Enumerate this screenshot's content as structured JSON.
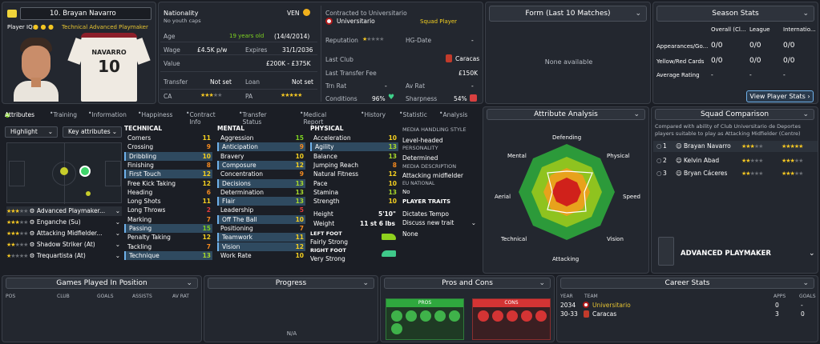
{
  "player": {
    "number_name": "10. Brayan Navarro",
    "player_iq_label": "Player IQ:",
    "role_short": "Technical Advanced Playmaker",
    "shirt_name": "NAVARRO",
    "shirt_number": "10"
  },
  "info": {
    "nationality_label": "Nationality",
    "nationality_code": "VEN",
    "caps": "No youth caps",
    "age_label": "Age",
    "age_value": "19 years old",
    "dob": "(14/4/2014)",
    "wage_label": "Wage",
    "wage_value": "£4.5K p/w",
    "expires_label": "Expires",
    "expires_value": "31/1/2036",
    "value_label": "Value",
    "value_value": "£200K - £375K",
    "transfer_label": "Transfer",
    "transfer_value": "Not set",
    "loan_label": "Loan",
    "loan_value": "Not set",
    "ca_label": "CA",
    "pa_label": "PA"
  },
  "contract": {
    "contracted_to": "Contracted to Universitario",
    "club": "Universitario",
    "status": "Squad Player",
    "reputation_label": "Reputation",
    "hg_label": "HG-Date",
    "hg_value": "-",
    "last_club_label": "Last Club",
    "last_club_value": "Caracas",
    "last_fee_label": "Last Transfer Fee",
    "last_fee_value": "£150K",
    "trn_rat_label": "Trn Rat",
    "trn_rat_value": "-",
    "av_rat_label": "Av Rat",
    "av_rat_value": "-",
    "conditions_label": "Conditions",
    "conditions_value": "96%",
    "sharpness_label": "Sharpness",
    "sharpness_value": "54%"
  },
  "form": {
    "title": "Form (Last 10 Matches)",
    "empty": "None available"
  },
  "season": {
    "title": "Season Stats",
    "cols": [
      "Overall (Cl...",
      "League",
      "Internatio..."
    ],
    "rows": [
      {
        "label": "Appearances/Go...",
        "a": "0/0",
        "b": "0/0",
        "c": "0/0"
      },
      {
        "label": "Yellow/Red Cards",
        "a": "0/0",
        "b": "0/0",
        "c": "0/0"
      },
      {
        "label": "Average Rating",
        "a": "-",
        "b": "-",
        "c": "-"
      }
    ],
    "button": "View Player Stats"
  },
  "tabs": [
    "Attributes",
    "Training",
    "Information",
    "Happiness",
    "Contract Info",
    "Transfer Status",
    "Medical Report",
    "History",
    "Statistic",
    "Analysis"
  ],
  "attributes": {
    "highlight": "Highlight",
    "key_attributes": "Key attributes",
    "technical_title": "TECHNICAL",
    "technical": [
      {
        "n": "Corners",
        "v": "11"
      },
      {
        "n": "Crossing",
        "v": "9"
      },
      {
        "n": "Dribbling",
        "v": "10"
      },
      {
        "n": "Finishing",
        "v": "8"
      },
      {
        "n": "First Touch",
        "v": "12"
      },
      {
        "n": "Free Kick Taking",
        "v": "12"
      },
      {
        "n": "Heading",
        "v": "6"
      },
      {
        "n": "Long Shots",
        "v": "11"
      },
      {
        "n": "Long Throws",
        "v": "2"
      },
      {
        "n": "Marking",
        "v": "7"
      },
      {
        "n": "Passing",
        "v": "15"
      },
      {
        "n": "Penalty Taking",
        "v": "12"
      },
      {
        "n": "Tackling",
        "v": "7"
      },
      {
        "n": "Technique",
        "v": "13"
      }
    ],
    "mental_title": "MENTAL",
    "mental": [
      {
        "n": "Aggression",
        "v": "15"
      },
      {
        "n": "Anticipation",
        "v": "9"
      },
      {
        "n": "Bravery",
        "v": "10"
      },
      {
        "n": "Composure",
        "v": "12"
      },
      {
        "n": "Concentration",
        "v": "9"
      },
      {
        "n": "Decisions",
        "v": "13"
      },
      {
        "n": "Determination",
        "v": "13"
      },
      {
        "n": "Flair",
        "v": "13"
      },
      {
        "n": "Leadership",
        "v": "5"
      },
      {
        "n": "Off The Ball",
        "v": "10"
      },
      {
        "n": "Positioning",
        "v": "7"
      },
      {
        "n": "Teamwork",
        "v": "11"
      },
      {
        "n": "Vision",
        "v": "12"
      },
      {
        "n": "Work Rate",
        "v": "10"
      }
    ],
    "physical_title": "PHYSICAL",
    "physical": [
      {
        "n": "Acceleration",
        "v": "10"
      },
      {
        "n": "Agility",
        "v": "13"
      },
      {
        "n": "Balance",
        "v": "13"
      },
      {
        "n": "Jumping Reach",
        "v": "8"
      },
      {
        "n": "Natural Fitness",
        "v": "12"
      },
      {
        "n": "Pace",
        "v": "10"
      },
      {
        "n": "Stamina",
        "v": "13"
      },
      {
        "n": "Strength",
        "v": "10"
      }
    ],
    "height_label": "Height",
    "height_value": "5'10\"",
    "weight_label": "Weight",
    "weight_value": "11 st 6 lbs",
    "left_foot_label": "LEFT FOOT",
    "left_foot_value": "Fairly Strong",
    "right_foot_label": "RIGHT FOOT",
    "right_foot_value": "Very Strong",
    "media_style_label": "MEDIA HANDLING STYLE",
    "media_style_value": "Level-headed",
    "personality_label": "PERSONALITY",
    "personality_value": "Determined",
    "media_desc_label": "MEDIA DESCRIPTION",
    "media_desc_value": "Attacking midfielder",
    "eu_label": "EU NATIONAL",
    "eu_value": "No",
    "traits_label": "PLAYER TRAITS",
    "trait1": "Dictates Tempo",
    "trait2": "Discuss new trait",
    "trait3": "None"
  },
  "roles": [
    {
      "name": "Advanced Playmaker...",
      "stars": "★★★",
      "gray": "★★"
    },
    {
      "name": "Enganche (Su)",
      "stars": "★★★",
      "gray": "★★"
    },
    {
      "name": "Attacking Midfielder...",
      "stars": "★★★",
      "gray": "★★"
    },
    {
      "name": "Shadow Striker (At)",
      "stars": "★★",
      "gray": "★★★"
    },
    {
      "name": "Trequartista (At)",
      "stars": "★",
      "gray": "★★★★"
    }
  ],
  "analysis": {
    "title": "Attribute Analysis",
    "axes": [
      "Defending",
      "Physical",
      "Speed",
      "Vision",
      "Attacking",
      "Technical",
      "Aerial",
      "Mental"
    ]
  },
  "squad": {
    "title": "Squad Comparison",
    "desc": "Compared with ability of Club Universitario de Deportes players suitable to play as Attacking Midfielder (Centre)",
    "rows": [
      {
        "rank": "1",
        "name": "Brayan Navarro",
        "ca": "★★★",
        "cag": "★★",
        "pa": "★★★★★",
        "pag": ""
      },
      {
        "rank": "2",
        "name": "Kelvin Abad",
        "ca": "★★",
        "cag": "★★★",
        "pa": "★★★",
        "pag": "★★"
      },
      {
        "rank": "3",
        "name": "Bryan Cáceres",
        "ca": "★★",
        "cag": "★★★",
        "pa": "★★★",
        "pag": "★★"
      }
    ],
    "role": "ADVANCED PLAYMAKER"
  },
  "bottom": {
    "games_title": "Games Played In Position",
    "games_cols": [
      "POS",
      "CLUB",
      "GOALS",
      "ASSISTS",
      "AV RAT"
    ],
    "progress_title": "Progress",
    "progress_empty": "N/A",
    "pros_title": "Pros and Cons",
    "pros_label": "PROS",
    "cons_label": "CONS",
    "career_title": "Career Stats",
    "career_cols": [
      "YEAR",
      "TEAM",
      "APPS",
      "GOALS"
    ],
    "career_rows": [
      {
        "year": "2034",
        "team": "Universitario",
        "apps": "0",
        "goals": "-"
      },
      {
        "year": "30-33",
        "team": "Caracas",
        "apps": "3",
        "goals": "0"
      }
    ]
  },
  "colors": {
    "accent": "#7ed321",
    "bg": "#1b1e25",
    "highlight": "#2f4a60"
  }
}
